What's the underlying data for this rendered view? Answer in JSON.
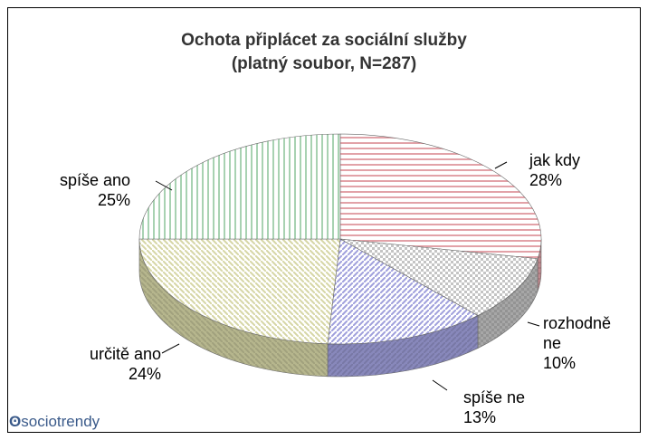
{
  "chart_data": {
    "type": "pie3d",
    "title": "Ochota připlácet za sociální služby",
    "subtitle": "(platný soubor, N=287)",
    "categories": [
      "jak kdy",
      "rozhodně ne",
      "spíše ne",
      "určitě ano",
      "spíše ano"
    ],
    "values": [
      28,
      10,
      13,
      24,
      25
    ],
    "value_labels": [
      "28%",
      "10%",
      "13%",
      "24%",
      "25%"
    ],
    "colors": [
      "#e2a2a8",
      "#c4c4c4",
      "#a0a0dc",
      "#d6d6a6",
      "#a8d2b2"
    ],
    "logo": "sociotrendy"
  }
}
